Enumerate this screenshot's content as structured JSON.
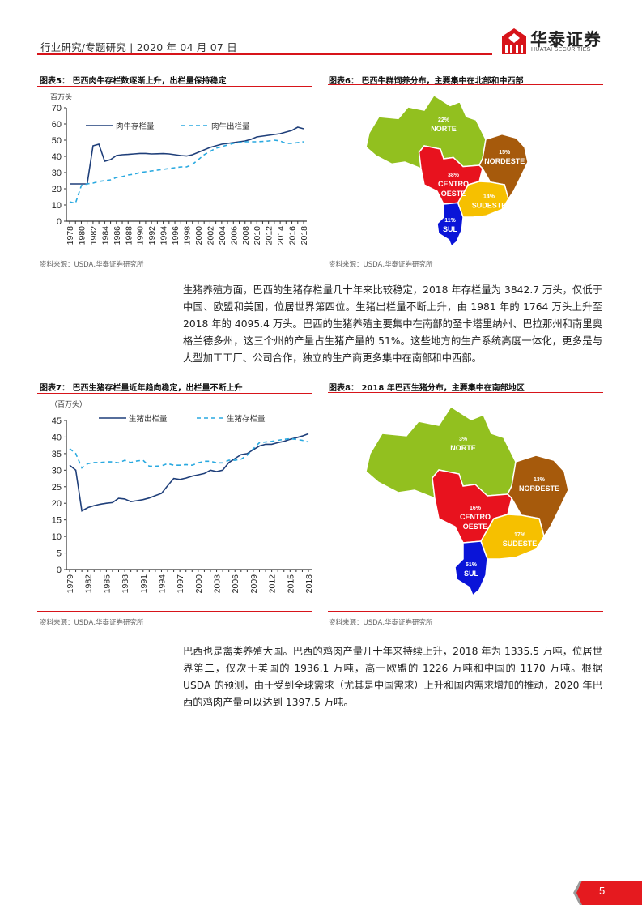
{
  "header": {
    "breadcrumb": "行业研究/专题研究 | 2020 年 04 月 07 日",
    "logo_cn": "华泰证券",
    "logo_en": "HUATAI SECURITIES",
    "accent_color": "#d7141a"
  },
  "figures": [
    {
      "id": "fig5",
      "title": "图表5：  巴西肉牛存栏数逐渐上升，出栏量保持稳定",
      "source": "资料来源：USDA,华泰证券研究所"
    },
    {
      "id": "fig6",
      "title": "图表6：  巴西牛群饲养分布，主要集中在北部和中西部",
      "source": "资料来源：USDA,华泰证券研究所",
      "regions": [
        {
          "name": "NORTE",
          "pct": "22%",
          "color": "#92c01f"
        },
        {
          "name": "NORDESTE",
          "pct": "15%",
          "color": "#a65a0c"
        },
        {
          "name": "CENTRO OESTE",
          "pct": "38%",
          "color": "#e8121e"
        },
        {
          "name": "SUDESTE",
          "pct": "14%",
          "color": "#f6c000"
        },
        {
          "name": "SUL",
          "pct": "11%",
          "color": "#0a14d8"
        }
      ]
    },
    {
      "id": "fig7",
      "title": "图表7：  巴西生猪存栏量近年趋向稳定，出栏量不断上升",
      "source": "资料来源：USDA,华泰证券研究所"
    },
    {
      "id": "fig8",
      "title": "图表8：  2018 年巴西生猪分布，主要集中在南部地区",
      "source": "资料来源：USDA,华泰证券研究所",
      "regions": [
        {
          "name": "NORTE",
          "pct": "3%",
          "color": "#92c01f"
        },
        {
          "name": "NORDESTE",
          "pct": "13%",
          "color": "#a65a0c"
        },
        {
          "name": "CENTRO OESTE",
          "pct": "16%",
          "color": "#e8121e"
        },
        {
          "name": "SUDESTE",
          "pct": "17%",
          "color": "#f6c000"
        },
        {
          "name": "SUL",
          "pct": "51%",
          "color": "#0a14d8"
        }
      ]
    }
  ],
  "chart_data": [
    {
      "type": "line",
      "title": "巴西肉牛存栏数逐渐上升，出栏量保持稳定",
      "ylabel": "百万头",
      "xlabel": "",
      "ylim": [
        0,
        70
      ],
      "yticks": [
        0,
        10,
        20,
        30,
        40,
        50,
        60,
        70
      ],
      "xtick_labels": [
        "1978",
        "1980",
        "1982",
        "1984",
        "1986",
        "1988",
        "1990",
        "1992",
        "1994",
        "1996",
        "1998",
        "2000",
        "2002",
        "2004",
        "2006",
        "2008",
        "2010",
        "2012",
        "2014",
        "2016",
        "2018"
      ],
      "legend_position": "top",
      "grid": false,
      "x": [
        1978,
        1979,
        1980,
        1981,
        1982,
        1983,
        1984,
        1985,
        1986,
        1987,
        1988,
        1989,
        1990,
        1991,
        1992,
        1993,
        1994,
        1995,
        1996,
        1997,
        1998,
        1999,
        2000,
        2001,
        2002,
        2003,
        2004,
        2005,
        2006,
        2007,
        2008,
        2009,
        2010,
        2011,
        2012,
        2013,
        2014,
        2015,
        2016,
        2017,
        2018
      ],
      "series": [
        {
          "name": "肉牛存栏量",
          "style": "solid",
          "color": "#1f3f7a",
          "values": [
            23,
            23,
            23,
            23,
            46.5,
            47.5,
            37,
            38,
            40.5,
            41,
            41.2,
            41.5,
            41.8,
            41.8,
            41.5,
            41.6,
            41.7,
            41.5,
            41,
            40.5,
            40.2,
            41,
            42.5,
            44,
            45.5,
            46.5,
            47.5,
            48,
            48.5,
            49,
            49.5,
            50.5,
            52,
            52.5,
            53,
            53.5,
            54,
            55,
            56,
            58,
            57
          ]
        },
        {
          "name": "肉牛出栏量",
          "style": "dashed",
          "color": "#29a9e0",
          "values": [
            12,
            11,
            22,
            23,
            23.5,
            24.5,
            25,
            25.5,
            27,
            27.5,
            28.5,
            29,
            30,
            30.5,
            31,
            31.5,
            32,
            32.5,
            33,
            33.5,
            33.5,
            35,
            38,
            41,
            43,
            45,
            46,
            47,
            48,
            48.5,
            49,
            49,
            49,
            49.2,
            49.5,
            50,
            49.5,
            48,
            48,
            48.5,
            49
          ]
        }
      ]
    },
    {
      "type": "line",
      "title": "巴西生猪存栏量近年趋向稳定，出栏量不断上升",
      "ylabel": "（百万头）",
      "xlabel": "",
      "ylim": [
        0,
        45
      ],
      "yticks": [
        0,
        5,
        10,
        15,
        20,
        25,
        30,
        35,
        40,
        45
      ],
      "xtick_labels": [
        "1979",
        "1982",
        "1985",
        "1988",
        "1991",
        "1994",
        "1997",
        "2000",
        "2003",
        "2006",
        "2009",
        "2012",
        "2015",
        "2018"
      ],
      "legend_position": "top",
      "grid": false,
      "x": [
        1979,
        1980,
        1981,
        1982,
        1983,
        1984,
        1985,
        1986,
        1987,
        1988,
        1989,
        1990,
        1991,
        1992,
        1993,
        1994,
        1995,
        1996,
        1997,
        1998,
        1999,
        2000,
        2001,
        2002,
        2003,
        2004,
        2005,
        2006,
        2007,
        2008,
        2009,
        2010,
        2011,
        2012,
        2013,
        2014,
        2015,
        2016,
        2017,
        2018
      ],
      "series": [
        {
          "name": "生猪出栏量",
          "style": "solid",
          "color": "#1f3f7a",
          "values": [
            31.5,
            30,
            17.7,
            18.7,
            19.3,
            19.7,
            20,
            20.2,
            21.5,
            21.3,
            20.5,
            20.8,
            21.1,
            21.6,
            22.3,
            23,
            25.3,
            27.5,
            27.2,
            27.6,
            28.2,
            28.6,
            29,
            30,
            29.6,
            30,
            32.3,
            33.5,
            34.7,
            35,
            36.2,
            37.3,
            37.8,
            37.8,
            38.3,
            38.7,
            39.3,
            39.8,
            40.3,
            41
          ]
        },
        {
          "name": "生猪存栏量",
          "style": "dashed",
          "color": "#29a9e0",
          "values": [
            36.5,
            35,
            30.7,
            32,
            32.3,
            32.3,
            32.5,
            32.5,
            32.2,
            33,
            32.3,
            32.8,
            33,
            31.2,
            31.2,
            31.3,
            32,
            31.5,
            31.5,
            31.7,
            31.5,
            32.2,
            32.7,
            32.7,
            32.2,
            32.2,
            33,
            33,
            33.3,
            34.5,
            36.5,
            38.3,
            38.5,
            38.7,
            39,
            39.3,
            39.5,
            39.3,
            39,
            38.5
          ]
        }
      ]
    }
  ],
  "paragraphs": {
    "p1": "生猪养殖方面，巴西的生猪存栏量几十年来比较稳定，2018 年存栏量为 3842.7 万头，仅低于中国、欧盟和美国，位居世界第四位。生猪出栏量不断上升，由 1981 年的 1764 万头上升至 2018 年的 4095.4 万头。巴西的生猪养殖主要集中在南部的圣卡塔里纳州、巴拉那州和南里奥格兰德多州，这三个州的产量占生猪产量的 51%。这些地方的生产系统高度一体化，更多是与大型加工工厂、公司合作，独立的生产商更多集中在南部和中西部。",
    "p2": "巴西也是禽类养殖大国。巴西的鸡肉产量几十年来持续上升，2018 年为 1335.5 万吨，位居世界第二，仅次于美国的 1936.1 万吨，高于欧盟的 1226 万吨和中国的 1170 万吨。根据 USDA 的预测，由于受到全球需求（尤其是中国需求）上升和国内需求增加的推动，2020 年巴西的鸡肉产量可以达到 1397.5 万吨。"
  },
  "footer": {
    "page_number": "5"
  }
}
